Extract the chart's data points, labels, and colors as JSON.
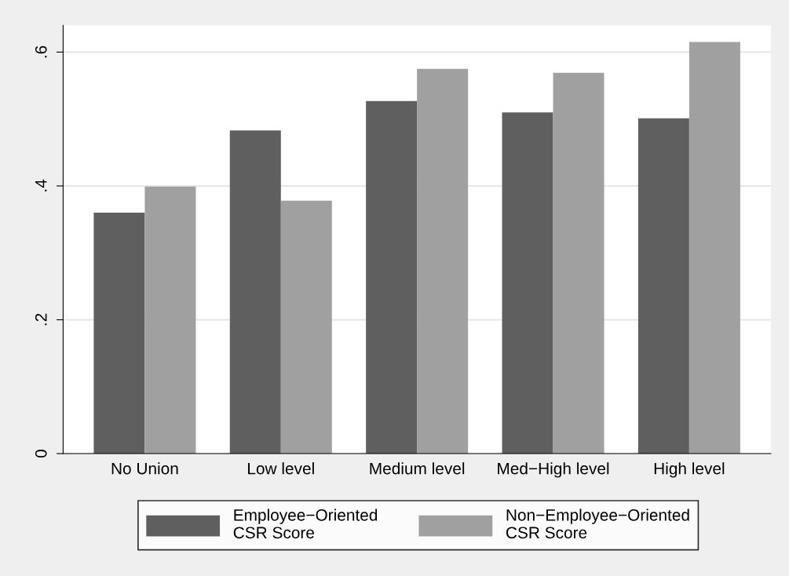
{
  "chart_data": {
    "type": "bar",
    "categories": [
      "No Union",
      "Low level",
      "Medium level",
      "Med−High level",
      "High level"
    ],
    "series": [
      {
        "name": "Employee−Oriented\nCSR Score",
        "color": "#5f5f5f",
        "values": [
          0.36,
          0.483,
          0.527,
          0.51,
          0.501
        ]
      },
      {
        "name": "Non−Employee−Oriented\nCSR Score",
        "color": "#a0a0a0",
        "values": [
          0.399,
          0.378,
          0.575,
          0.569,
          0.615
        ]
      }
    ],
    "ylim": [
      0,
      0.64
    ],
    "yticks": [
      {
        "value": 0,
        "label": "0"
      },
      {
        "value": 0.2,
        "label": ".2"
      },
      {
        "value": 0.4,
        "label": ".4"
      },
      {
        "value": 0.6,
        "label": ".6"
      }
    ],
    "grid": "y",
    "legend": "bottom"
  }
}
